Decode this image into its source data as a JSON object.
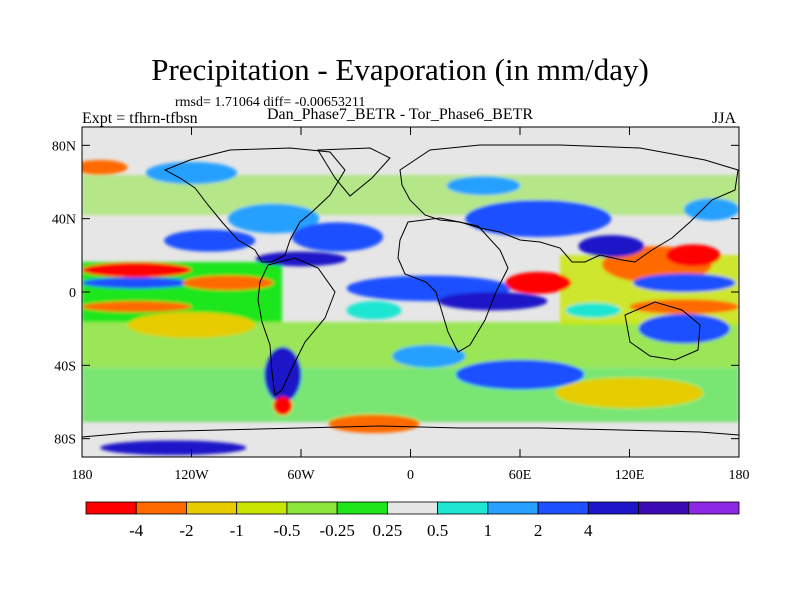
{
  "title": "Precipitation - Evaporation (in mm/day)",
  "stats_line": "rmsd= 1.71064  diff= -0.00653211",
  "subtitle": "Dan_Phase7_BETR - Tor_Phase6_BETR",
  "left_string": "Expt = tfhrn-tfbsn",
  "right_string": "JJA",
  "lat_ticks": [
    {
      "label": "80N",
      "lat": 80
    },
    {
      "label": "40N",
      "lat": 40
    },
    {
      "label": "0",
      "lat": 0
    },
    {
      "label": "40S",
      "lat": -40
    },
    {
      "label": "80S",
      "lat": -80
    }
  ],
  "lon_ticks": [
    {
      "label": "180",
      "lon": -180
    },
    {
      "label": "120W",
      "lon": -120
    },
    {
      "label": "60W",
      "lon": -60
    },
    {
      "label": "0",
      "lon": 0
    },
    {
      "label": "60E",
      "lon": 60
    },
    {
      "label": "120E",
      "lon": 120
    },
    {
      "label": "180",
      "lon": 180
    }
  ],
  "colorbar": {
    "colors": [
      "#ff0000",
      "#ff6a00",
      "#e6cc00",
      "#c8e600",
      "#8ce63c",
      "#1fe61a",
      "#e6e6e6",
      "#1ee6d2",
      "#28a0ff",
      "#1e50ff",
      "#1e14c8",
      "#3c0ab4",
      "#8c28e6"
    ],
    "labels": [
      "-4",
      "-2",
      "-1",
      "-0.5",
      "-0.25",
      "0.25",
      "0.5",
      "1",
      "2",
      "4"
    ],
    "label_start_index": 1
  },
  "field_blobs": [
    {
      "lon": 10,
      "lat": 2,
      "rx": 45,
      "ry": 7,
      "color": "#1e50ff"
    },
    {
      "lon": 45,
      "lat": -5,
      "rx": 30,
      "ry": 5,
      "color": "#1e14c8"
    },
    {
      "lon": 70,
      "lat": 5,
      "rx": 18,
      "ry": 6,
      "color": "#ff0000"
    },
    {
      "lon": -150,
      "lat": 5,
      "rx": 30,
      "ry": 3,
      "color": "#1e50ff"
    },
    {
      "lon": -150,
      "lat": 12,
      "rx": 30,
      "ry": 4,
      "color": "#ff0000"
    },
    {
      "lon": -150,
      "lat": -8,
      "rx": 30,
      "ry": 3,
      "color": "#ff6a00"
    },
    {
      "lon": 150,
      "lat": -8,
      "rx": 30,
      "ry": 4,
      "color": "#ff6a00"
    },
    {
      "lon": 135,
      "lat": 15,
      "rx": 30,
      "ry": 10,
      "color": "#ff6a00"
    },
    {
      "lon": 155,
      "lat": 20,
      "rx": 15,
      "ry": 6,
      "color": "#ff0000"
    },
    {
      "lon": 150,
      "lat": 5,
      "rx": 28,
      "ry": 5,
      "color": "#1e50ff"
    },
    {
      "lon": 150,
      "lat": -20,
      "rx": 25,
      "ry": 8,
      "color": "#1e50ff"
    },
    {
      "lon": -110,
      "lat": 28,
      "rx": 25,
      "ry": 6,
      "color": "#1e50ff"
    },
    {
      "lon": -75,
      "lat": 40,
      "rx": 25,
      "ry": 8,
      "color": "#28a0ff"
    },
    {
      "lon": -40,
      "lat": 30,
      "rx": 25,
      "ry": 8,
      "color": "#1e50ff"
    },
    {
      "lon": -60,
      "lat": 18,
      "rx": 25,
      "ry": 4,
      "color": "#1e14c8"
    },
    {
      "lon": -100,
      "lat": 5,
      "rx": 25,
      "ry": 4,
      "color": "#ff6a00"
    },
    {
      "lon": -70,
      "lat": -45,
      "rx": 10,
      "ry": 15,
      "color": "#1e14c8"
    },
    {
      "lon": -70,
      "lat": -62,
      "rx": 5,
      "ry": 5,
      "color": "#ff0000"
    },
    {
      "lon": -130,
      "lat": -85,
      "rx": 40,
      "ry": 4,
      "color": "#1e14c8"
    },
    {
      "lon": 60,
      "lat": -45,
      "rx": 35,
      "ry": 8,
      "color": "#1e50ff"
    },
    {
      "lon": 10,
      "lat": -35,
      "rx": 20,
      "ry": 6,
      "color": "#28a0ff"
    },
    {
      "lon": 70,
      "lat": 40,
      "rx": 40,
      "ry": 10,
      "color": "#1e50ff"
    },
    {
      "lon": 110,
      "lat": 25,
      "rx": 18,
      "ry": 6,
      "color": "#1e14c8"
    },
    {
      "lon": -120,
      "lat": 65,
      "rx": 25,
      "ry": 6,
      "color": "#28a0ff"
    },
    {
      "lon": 40,
      "lat": 58,
      "rx": 20,
      "ry": 5,
      "color": "#28a0ff"
    },
    {
      "lon": -170,
      "lat": 68,
      "rx": 15,
      "ry": 4,
      "color": "#ff6a00"
    },
    {
      "lon": 165,
      "lat": 45,
      "rx": 15,
      "ry": 6,
      "color": "#28a0ff"
    },
    {
      "lon": 100,
      "lat": -10,
      "rx": 15,
      "ry": 4,
      "color": "#1ee6d2"
    },
    {
      "lon": -20,
      "lat": -10,
      "rx": 15,
      "ry": 5,
      "color": "#1ee6d2"
    },
    {
      "lon": -120,
      "lat": -18,
      "rx": 35,
      "ry": 7,
      "color": "#e6cc00"
    },
    {
      "lon": 120,
      "lat": -55,
      "rx": 40,
      "ry": 8,
      "color": "#e6cc00"
    },
    {
      "lon": -20,
      "lat": -72,
      "rx": 25,
      "ry": 5,
      "color": "#ff6a00"
    }
  ]
}
